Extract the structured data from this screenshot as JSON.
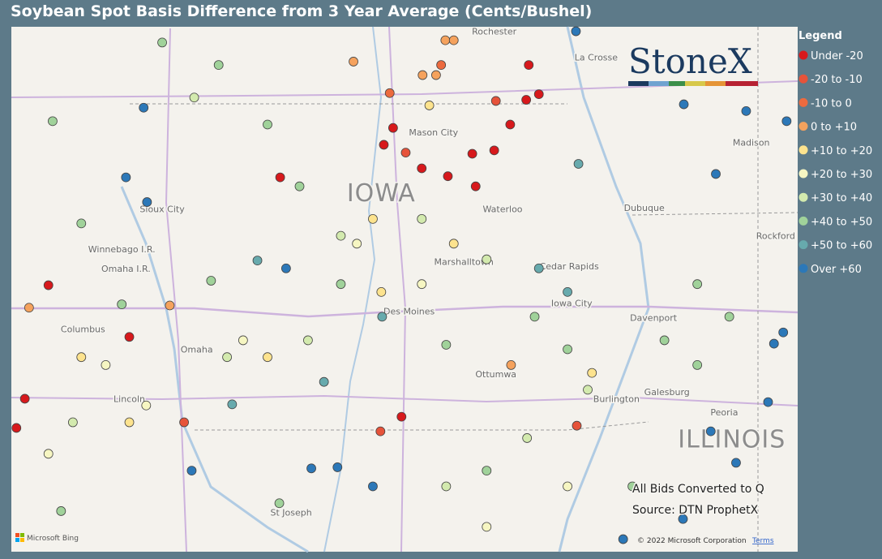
{
  "header": {
    "title": "Soybean Spot Basis Difference from 3 Year Average (Cents/Bushel)"
  },
  "legend": {
    "title": "Legend",
    "items": [
      {
        "label": "Under -20",
        "color": "#d7191c"
      },
      {
        "label": "-20 to -10",
        "color": "#e6533a"
      },
      {
        "label": "-10 to 0",
        "color": "#ec6a3e"
      },
      {
        "label": "0 to +10",
        "color": "#f5a25d"
      },
      {
        "label": "+10 to +20",
        "color": "#fde38e"
      },
      {
        "label": "+20 to +30",
        "color": "#f6f6c2"
      },
      {
        "label": "+30 to +40",
        "color": "#d3eaae"
      },
      {
        "label": "+40 to +50",
        "color": "#a0d29a"
      },
      {
        "label": "+50 to +60",
        "color": "#67aaad"
      },
      {
        "label": "Over +60",
        "color": "#2c78b8"
      }
    ]
  },
  "logo": "StoneX",
  "notes": [
    "All Bids Converted to Q",
    "Source: DTN ProphetX"
  ],
  "attribution": {
    "provider": "Microsoft Bing",
    "copyright": "© 2022 Microsoft Corporation",
    "terms": "Terms"
  },
  "places": [
    {
      "name": "Rochester",
      "lon": -92.46,
      "lat": 44.08
    },
    {
      "name": "La Crosse",
      "lon": -91.25,
      "lat": 43.85
    },
    {
      "name": "Mason City",
      "lon": -93.18,
      "lat": 43.18
    },
    {
      "name": "IOWA",
      "lon": -93.8,
      "lat": 42.64,
      "big": true
    },
    {
      "name": "Sioux City",
      "lon": -96.4,
      "lat": 42.5
    },
    {
      "name": "Waterloo",
      "lon": -92.36,
      "lat": 42.5
    },
    {
      "name": "Dubuque",
      "lon": -90.68,
      "lat": 42.51
    },
    {
      "name": "Madison",
      "lon": -89.41,
      "lat": 43.09
    },
    {
      "name": "Rockford",
      "lon": -89.12,
      "lat": 42.26
    },
    {
      "name": "Winnebago I.R.",
      "lon": -96.88,
      "lat": 42.14
    },
    {
      "name": "Omaha I.R.",
      "lon": -96.83,
      "lat": 41.97
    },
    {
      "name": "Marshalltown",
      "lon": -92.82,
      "lat": 42.03
    },
    {
      "name": "Cedar Rapids",
      "lon": -91.57,
      "lat": 41.99
    },
    {
      "name": "Iowa City",
      "lon": -91.54,
      "lat": 41.66
    },
    {
      "name": "Des Moines",
      "lon": -93.47,
      "lat": 41.59
    },
    {
      "name": "Davenport",
      "lon": -90.57,
      "lat": 41.53
    },
    {
      "name": "Columbus",
      "lon": -97.34,
      "lat": 41.43
    },
    {
      "name": "Omaha",
      "lon": -95.99,
      "lat": 41.25
    },
    {
      "name": "Ottumwa",
      "lon": -92.44,
      "lat": 41.03
    },
    {
      "name": "Lincoln",
      "lon": -96.79,
      "lat": 40.81
    },
    {
      "name": "Burlington",
      "lon": -91.01,
      "lat": 40.81
    },
    {
      "name": "Galesburg",
      "lon": -90.41,
      "lat": 40.87
    },
    {
      "name": "Peoria",
      "lon": -89.73,
      "lat": 40.69
    },
    {
      "name": "ILLINOIS",
      "lon": -89.64,
      "lat": 40.45,
      "big": true
    },
    {
      "name": "St Joseph",
      "lon": -94.87,
      "lat": 39.8
    }
  ],
  "points": [
    {
      "lon": -93.66,
      "lat": 43.22,
      "bin": "Under -20"
    },
    {
      "lon": -93.77,
      "lat": 43.07,
      "bin": "Under -20"
    },
    {
      "lon": -93.51,
      "lat": 43.0,
      "bin": "-20 to -10"
    },
    {
      "lon": -93.32,
      "lat": 42.86,
      "bin": "Under -20"
    },
    {
      "lon": -93.01,
      "lat": 42.79,
      "bin": "Under -20"
    },
    {
      "lon": -92.72,
      "lat": 42.99,
      "bin": "Under -20"
    },
    {
      "lon": -92.46,
      "lat": 43.02,
      "bin": "Under -20"
    },
    {
      "lon": -92.27,
      "lat": 43.25,
      "bin": "Under -20"
    },
    {
      "lon": -92.68,
      "lat": 42.7,
      "bin": "Under -20"
    },
    {
      "lon": -92.05,
      "lat": 43.78,
      "bin": "Under -20"
    },
    {
      "lon": -91.93,
      "lat": 43.52,
      "bin": "Under -20"
    },
    {
      "lon": -92.08,
      "lat": 43.47,
      "bin": "Under -20"
    },
    {
      "lon": -92.44,
      "lat": 43.46,
      "bin": "-20 to -10"
    },
    {
      "lon": -95.0,
      "lat": 42.78,
      "bin": "Under -20"
    },
    {
      "lon": -96.79,
      "lat": 41.36,
      "bin": "Under -20"
    },
    {
      "lon": -97.75,
      "lat": 41.82,
      "bin": "Under -20"
    },
    {
      "lon": -98.03,
      "lat": 40.81,
      "bin": "Under -20"
    },
    {
      "lon": -98.13,
      "lat": 40.55,
      "bin": "Under -20"
    },
    {
      "lon": -96.14,
      "lat": 40.6,
      "bin": "-20 to -10"
    },
    {
      "lon": -93.56,
      "lat": 40.65,
      "bin": "Under -20"
    },
    {
      "lon": -93.81,
      "lat": 40.52,
      "bin": "-20 to -10"
    },
    {
      "lon": -91.48,
      "lat": 40.57,
      "bin": "-20 to -10"
    },
    {
      "lon": -93.09,
      "lat": 43.78,
      "bin": "-10 to 0"
    },
    {
      "lon": -93.7,
      "lat": 43.53,
      "bin": "-10 to 0"
    },
    {
      "lon": -93.04,
      "lat": 44.0,
      "bin": "0 to +10"
    },
    {
      "lon": -92.94,
      "lat": 44.0,
      "bin": "0 to +10"
    },
    {
      "lon": -93.31,
      "lat": 43.69,
      "bin": "0 to +10"
    },
    {
      "lon": -93.15,
      "lat": 43.69,
      "bin": "0 to +10"
    },
    {
      "lon": -94.13,
      "lat": 43.81,
      "bin": "0 to +10"
    },
    {
      "lon": -92.26,
      "lat": 41.11,
      "bin": "0 to +10"
    },
    {
      "lon": -97.98,
      "lat": 41.62,
      "bin": "0 to +10"
    },
    {
      "lon": -96.31,
      "lat": 41.64,
      "bin": "0 to +10"
    },
    {
      "lon": -90.21,
      "lat": 43.43,
      "bin": "Over +60"
    },
    {
      "lon": -89.83,
      "lat": 42.81,
      "bin": "Over +60"
    },
    {
      "lon": -89.47,
      "lat": 43.37,
      "bin": "Over +60"
    },
    {
      "lon": -88.99,
      "lat": 43.28,
      "bin": "Over +60"
    },
    {
      "lon": -89.14,
      "lat": 41.3,
      "bin": "Over +60"
    },
    {
      "lon": -89.03,
      "lat": 41.4,
      "bin": "Over +60"
    },
    {
      "lon": -89.21,
      "lat": 40.78,
      "bin": "Over +60"
    },
    {
      "lon": -89.89,
      "lat": 40.52,
      "bin": "Over +60"
    },
    {
      "lon": -89.59,
      "lat": 40.24,
      "bin": "Over +60"
    },
    {
      "lon": -93.9,
      "lat": 40.03,
      "bin": "Over +60"
    },
    {
      "lon": -94.32,
      "lat": 40.2,
      "bin": "Over +60"
    },
    {
      "lon": -94.63,
      "lat": 40.19,
      "bin": "Over +60"
    },
    {
      "lon": -96.05,
      "lat": 40.17,
      "bin": "Over +60"
    },
    {
      "lon": -94.93,
      "lat": 41.97,
      "bin": "Over +60"
    },
    {
      "lon": -96.58,
      "lat": 42.56,
      "bin": "Over +60"
    },
    {
      "lon": -96.83,
      "lat": 42.78,
      "bin": "Over +60"
    },
    {
      "lon": -96.62,
      "lat": 43.4,
      "bin": "Over +60"
    },
    {
      "lon": -91.49,
      "lat": 44.08,
      "bin": "Over +60"
    },
    {
      "lon": -90.22,
      "lat": 39.74,
      "bin": "Over +60"
    },
    {
      "lon": -90.93,
      "lat": 39.56,
      "bin": "Over +60"
    },
    {
      "lon": -95.27,
      "lat": 42.04,
      "bin": "+50 to +60"
    },
    {
      "lon": -94.48,
      "lat": 40.96,
      "bin": "+50 to +60"
    },
    {
      "lon": -95.57,
      "lat": 40.76,
      "bin": "+50 to +60"
    },
    {
      "lon": -93.79,
      "lat": 41.54,
      "bin": "+50 to +60"
    },
    {
      "lon": -91.93,
      "lat": 41.97,
      "bin": "+50 to +60"
    },
    {
      "lon": -91.46,
      "lat": 42.9,
      "bin": "+50 to +60"
    },
    {
      "lon": -91.59,
      "lat": 41.76,
      "bin": "+50 to +60"
    },
    {
      "lon": -96.4,
      "lat": 43.98,
      "bin": "+40 to +50"
    },
    {
      "lon": -95.73,
      "lat": 43.78,
      "bin": "+40 to +50"
    },
    {
      "lon": -97.7,
      "lat": 43.28,
      "bin": "+40 to +50"
    },
    {
      "lon": -95.15,
      "lat": 43.25,
      "bin": "+40 to +50"
    },
    {
      "lon": -94.77,
      "lat": 42.7,
      "bin": "+40 to +50"
    },
    {
      "lon": -97.36,
      "lat": 42.37,
      "bin": "+40 to +50"
    },
    {
      "lon": -95.82,
      "lat": 41.86,
      "bin": "+40 to +50"
    },
    {
      "lon": -96.88,
      "lat": 41.65,
      "bin": "+40 to +50"
    },
    {
      "lon": -93.03,
      "lat": 41.29,
      "bin": "+40 to +50"
    },
    {
      "lon": -92.55,
      "lat": 40.17,
      "bin": "+40 to +50"
    },
    {
      "lon": -91.98,
      "lat": 41.54,
      "bin": "+40 to +50"
    },
    {
      "lon": -90.44,
      "lat": 41.33,
      "bin": "+40 to +50"
    },
    {
      "lon": -90.05,
      "lat": 41.11,
      "bin": "+40 to +50"
    },
    {
      "lon": -89.67,
      "lat": 41.54,
      "bin": "+40 to +50"
    },
    {
      "lon": -91.59,
      "lat": 41.25,
      "bin": "+40 to +50"
    },
    {
      "lon": -90.82,
      "lat": 40.03,
      "bin": "+40 to +50"
    },
    {
      "lon": -95.01,
      "lat": 39.88,
      "bin": "+40 to +50"
    },
    {
      "lon": -97.6,
      "lat": 39.81,
      "bin": "+40 to +50"
    },
    {
      "lon": -94.28,
      "lat": 41.83,
      "bin": "+40 to +50"
    },
    {
      "lon": -90.05,
      "lat": 41.83,
      "bin": "+40 to +50"
    },
    {
      "lon": -96.02,
      "lat": 43.49,
      "bin": "+30 to +40"
    },
    {
      "lon": -94.28,
      "lat": 42.26,
      "bin": "+30 to +40"
    },
    {
      "lon": -93.32,
      "lat": 42.41,
      "bin": "+30 to +40"
    },
    {
      "lon": -92.55,
      "lat": 42.05,
      "bin": "+30 to +40"
    },
    {
      "lon": -94.67,
      "lat": 41.33,
      "bin": "+30 to +40"
    },
    {
      "lon": -95.63,
      "lat": 41.18,
      "bin": "+30 to +40"
    },
    {
      "lon": -92.07,
      "lat": 40.46,
      "bin": "+30 to +40"
    },
    {
      "lon": -91.35,
      "lat": 40.89,
      "bin": "+30 to +40"
    },
    {
      "lon": -97.46,
      "lat": 40.6,
      "bin": "+30 to +40"
    },
    {
      "lon": -93.03,
      "lat": 40.03,
      "bin": "+30 to +40"
    },
    {
      "lon": -94.09,
      "lat": 42.19,
      "bin": "+20 to +30"
    },
    {
      "lon": -95.44,
      "lat": 41.33,
      "bin": "+20 to +30"
    },
    {
      "lon": -97.07,
      "lat": 41.11,
      "bin": "+20 to +30"
    },
    {
      "lon": -96.59,
      "lat": 40.75,
      "bin": "+20 to +30"
    },
    {
      "lon": -93.32,
      "lat": 41.83,
      "bin": "+20 to +30"
    },
    {
      "lon": -92.55,
      "lat": 39.67,
      "bin": "+20 to +30"
    },
    {
      "lon": -91.59,
      "lat": 40.03,
      "bin": "+20 to +30"
    },
    {
      "lon": -97.75,
      "lat": 40.32,
      "bin": "+20 to +30"
    },
    {
      "lon": -93.9,
      "lat": 42.41,
      "bin": "+10 to +20"
    },
    {
      "lon": -93.8,
      "lat": 41.76,
      "bin": "+10 to +20"
    },
    {
      "lon": -95.15,
      "lat": 41.18,
      "bin": "+10 to +20"
    },
    {
      "lon": -97.36,
      "lat": 41.18,
      "bin": "+10 to +20"
    },
    {
      "lon": -96.79,
      "lat": 40.6,
      "bin": "+10 to +20"
    },
    {
      "lon": -93.23,
      "lat": 43.42,
      "bin": "+10 to +20"
    },
    {
      "lon": -92.94,
      "lat": 42.19,
      "bin": "+10 to +20"
    },
    {
      "lon": -91.3,
      "lat": 41.04,
      "bin": "+10 to +20"
    }
  ]
}
